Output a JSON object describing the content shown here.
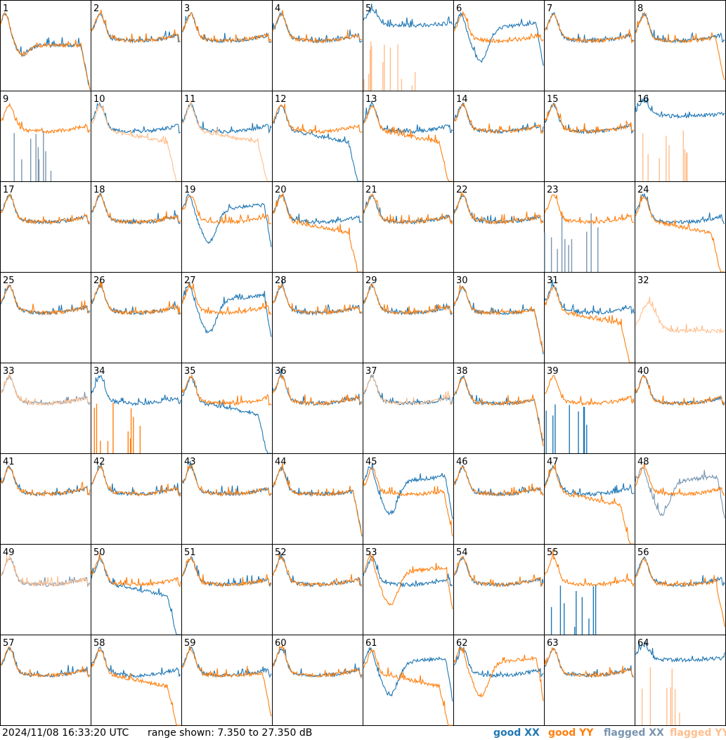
{
  "chart_data": {
    "type": "line",
    "ylim": [
      7.35,
      27.35
    ],
    "layout": "8x8 grid of small multiples",
    "panels": [
      {
        "label": "1",
        "xx": {
          "shape": "fall-dip",
          "flagged": false
        },
        "yy": {
          "shape": "fall-dip",
          "flagged": false
        }
      },
      {
        "label": "2",
        "xx": {
          "shape": "u",
          "flagged": false
        },
        "yy": {
          "shape": "u",
          "flagged": false
        }
      },
      {
        "label": "3",
        "xx": {
          "shape": "u",
          "flagged": false
        },
        "yy": {
          "shape": "u",
          "flagged": false
        }
      },
      {
        "label": "4",
        "xx": {
          "shape": "u",
          "flagged": false
        },
        "yy": {
          "shape": "u",
          "flagged": false
        }
      },
      {
        "label": "5",
        "xx": {
          "shape": "high-flat",
          "flagged": false
        },
        "yy": {
          "shape": "spikes-low",
          "flagged": true
        }
      },
      {
        "label": "6",
        "xx": {
          "shape": "deep-dip",
          "flagged": false
        },
        "yy": {
          "shape": "u",
          "flagged": false
        }
      },
      {
        "label": "7",
        "xx": {
          "shape": "u",
          "flagged": false
        },
        "yy": {
          "shape": "u",
          "flagged": false
        }
      },
      {
        "label": "8",
        "xx": {
          "shape": "u",
          "flagged": false
        },
        "yy": {
          "shape": "u-drop",
          "flagged": false
        }
      },
      {
        "label": "9",
        "xx": {
          "shape": "spikes-low",
          "flagged": true
        },
        "yy": {
          "shape": "u",
          "flagged": false
        }
      },
      {
        "label": "10",
        "xx": {
          "shape": "u",
          "flagged": false
        },
        "yy": {
          "shape": "droop",
          "flagged": true
        }
      },
      {
        "label": "11",
        "xx": {
          "shape": "u",
          "flagged": false
        },
        "yy": {
          "shape": "droop",
          "flagged": true
        }
      },
      {
        "label": "12",
        "xx": {
          "shape": "droop",
          "flagged": false
        },
        "yy": {
          "shape": "u",
          "flagged": false
        }
      },
      {
        "label": "13",
        "xx": {
          "shape": "u",
          "flagged": false
        },
        "yy": {
          "shape": "droop",
          "flagged": false
        }
      },
      {
        "label": "14",
        "xx": {
          "shape": "u",
          "flagged": false
        },
        "yy": {
          "shape": "u",
          "flagged": false
        }
      },
      {
        "label": "15",
        "xx": {
          "shape": "u",
          "flagged": false
        },
        "yy": {
          "shape": "u",
          "flagged": false
        }
      },
      {
        "label": "16",
        "xx": {
          "shape": "high-flat",
          "flagged": false
        },
        "yy": {
          "shape": "spikes-low",
          "flagged": true
        }
      },
      {
        "label": "17",
        "xx": {
          "shape": "u",
          "flagged": false
        },
        "yy": {
          "shape": "u",
          "flagged": false
        }
      },
      {
        "label": "18",
        "xx": {
          "shape": "u",
          "flagged": false
        },
        "yy": {
          "shape": "u",
          "flagged": false
        }
      },
      {
        "label": "19",
        "xx": {
          "shape": "deep-dip",
          "flagged": false
        },
        "yy": {
          "shape": "u",
          "flagged": false
        }
      },
      {
        "label": "20",
        "xx": {
          "shape": "u",
          "flagged": false
        },
        "yy": {
          "shape": "droop",
          "flagged": false
        }
      },
      {
        "label": "21",
        "xx": {
          "shape": "u",
          "flagged": false
        },
        "yy": {
          "shape": "u",
          "flagged": false
        }
      },
      {
        "label": "22",
        "xx": {
          "shape": "u",
          "flagged": false
        },
        "yy": {
          "shape": "u",
          "flagged": false
        }
      },
      {
        "label": "23",
        "xx": {
          "shape": "spikes-low",
          "flagged": true
        },
        "yy": {
          "shape": "u",
          "flagged": false
        }
      },
      {
        "label": "24",
        "xx": {
          "shape": "u",
          "flagged": false
        },
        "yy": {
          "shape": "droop",
          "flagged": false
        }
      },
      {
        "label": "25",
        "xx": {
          "shape": "u",
          "flagged": false
        },
        "yy": {
          "shape": "u",
          "flagged": false
        }
      },
      {
        "label": "26",
        "xx": {
          "shape": "u",
          "flagged": false
        },
        "yy": {
          "shape": "u",
          "flagged": false
        }
      },
      {
        "label": "27",
        "xx": {
          "shape": "deep-dip",
          "flagged": false
        },
        "yy": {
          "shape": "u",
          "flagged": false
        }
      },
      {
        "label": "28",
        "xx": {
          "shape": "u",
          "flagged": false
        },
        "yy": {
          "shape": "u",
          "flagged": false
        }
      },
      {
        "label": "29",
        "xx": {
          "shape": "u",
          "flagged": false
        },
        "yy": {
          "shape": "u",
          "flagged": false
        }
      },
      {
        "label": "30",
        "xx": {
          "shape": "u-drop",
          "flagged": false
        },
        "yy": {
          "shape": "u-drop",
          "flagged": false
        }
      },
      {
        "label": "31",
        "xx": {
          "shape": "u",
          "flagged": false
        },
        "yy": {
          "shape": "droop",
          "flagged": false
        }
      },
      {
        "label": "32",
        "xx": {
          "shape": "none",
          "flagged": true
        },
        "yy": {
          "shape": "noisy",
          "flagged": true
        }
      },
      {
        "label": "33",
        "xx": {
          "shape": "u",
          "flagged": true
        },
        "yy": {
          "shape": "u",
          "flagged": true
        }
      },
      {
        "label": "34",
        "xx": {
          "shape": "u",
          "flagged": false
        },
        "yy": {
          "shape": "spikes-low",
          "flagged": false
        }
      },
      {
        "label": "35",
        "xx": {
          "shape": "droop",
          "flagged": false
        },
        "yy": {
          "shape": "u",
          "flagged": false
        }
      },
      {
        "label": "36",
        "xx": {
          "shape": "u",
          "flagged": false
        },
        "yy": {
          "shape": "u",
          "flagged": false
        }
      },
      {
        "label": "37",
        "xx": {
          "shape": "u",
          "flagged": false
        },
        "yy": {
          "shape": "u",
          "flagged": true
        }
      },
      {
        "label": "38",
        "xx": {
          "shape": "u-drop",
          "flagged": false
        },
        "yy": {
          "shape": "u-drop",
          "flagged": false
        }
      },
      {
        "label": "39",
        "xx": {
          "shape": "spikes-low",
          "flagged": false
        },
        "yy": {
          "shape": "u",
          "flagged": false
        }
      },
      {
        "label": "40",
        "xx": {
          "shape": "u",
          "flagged": false
        },
        "yy": {
          "shape": "u",
          "flagged": false
        }
      },
      {
        "label": "41",
        "xx": {
          "shape": "u",
          "flagged": false
        },
        "yy": {
          "shape": "u",
          "flagged": false
        }
      },
      {
        "label": "42",
        "xx": {
          "shape": "u",
          "flagged": false
        },
        "yy": {
          "shape": "u",
          "flagged": false
        }
      },
      {
        "label": "43",
        "xx": {
          "shape": "u",
          "flagged": false
        },
        "yy": {
          "shape": "u",
          "flagged": false
        }
      },
      {
        "label": "44",
        "xx": {
          "shape": "u-drop",
          "flagged": false
        },
        "yy": {
          "shape": "u-drop",
          "flagged": false
        }
      },
      {
        "label": "45",
        "xx": {
          "shape": "deep-dip",
          "flagged": false
        },
        "yy": {
          "shape": "u-drop",
          "flagged": false
        }
      },
      {
        "label": "46",
        "xx": {
          "shape": "u",
          "flagged": false
        },
        "yy": {
          "shape": "u",
          "flagged": false
        }
      },
      {
        "label": "47",
        "xx": {
          "shape": "u",
          "flagged": false
        },
        "yy": {
          "shape": "droop",
          "flagged": false
        }
      },
      {
        "label": "48",
        "xx": {
          "shape": "deep-dip",
          "flagged": true
        },
        "yy": {
          "shape": "u",
          "flagged": false
        }
      },
      {
        "label": "49",
        "xx": {
          "shape": "u",
          "flagged": true
        },
        "yy": {
          "shape": "u",
          "flagged": true
        }
      },
      {
        "label": "50",
        "xx": {
          "shape": "droop",
          "flagged": false
        },
        "yy": {
          "shape": "u",
          "flagged": false
        }
      },
      {
        "label": "51",
        "xx": {
          "shape": "u",
          "flagged": false
        },
        "yy": {
          "shape": "u",
          "flagged": false
        }
      },
      {
        "label": "52",
        "xx": {
          "shape": "u",
          "flagged": false
        },
        "yy": {
          "shape": "u",
          "flagged": false
        }
      },
      {
        "label": "53",
        "xx": {
          "shape": "u",
          "flagged": false
        },
        "yy": {
          "shape": "deep-dip",
          "flagged": false
        }
      },
      {
        "label": "54",
        "xx": {
          "shape": "u",
          "flagged": false
        },
        "yy": {
          "shape": "u",
          "flagged": false
        }
      },
      {
        "label": "55",
        "xx": {
          "shape": "spikes-low",
          "flagged": false
        },
        "yy": {
          "shape": "u",
          "flagged": false
        }
      },
      {
        "label": "56",
        "xx": {
          "shape": "u",
          "flagged": false
        },
        "yy": {
          "shape": "u-drop",
          "flagged": false
        }
      },
      {
        "label": "57",
        "xx": {
          "shape": "u",
          "flagged": false
        },
        "yy": {
          "shape": "u",
          "flagged": false
        }
      },
      {
        "label": "58",
        "xx": {
          "shape": "u",
          "flagged": false
        },
        "yy": {
          "shape": "droop",
          "flagged": false
        }
      },
      {
        "label": "59",
        "xx": {
          "shape": "u",
          "flagged": false
        },
        "yy": {
          "shape": "u-drop",
          "flagged": false
        }
      },
      {
        "label": "60",
        "xx": {
          "shape": "u",
          "flagged": false
        },
        "yy": {
          "shape": "u",
          "flagged": false
        }
      },
      {
        "label": "61",
        "xx": {
          "shape": "deep-dip",
          "flagged": false
        },
        "yy": {
          "shape": "droop",
          "flagged": false
        }
      },
      {
        "label": "62",
        "xx": {
          "shape": "u",
          "flagged": false
        },
        "yy": {
          "shape": "deep-dip",
          "flagged": false
        }
      },
      {
        "label": "63",
        "xx": {
          "shape": "u",
          "flagged": false
        },
        "yy": {
          "shape": "u",
          "flagged": false
        }
      },
      {
        "label": "64",
        "xx": {
          "shape": "high-flat",
          "flagged": false
        },
        "yy": {
          "shape": "spikes-low",
          "flagged": true
        }
      }
    ]
  },
  "footer": {
    "timestamp": "2024/11/08 16:33:20 UTC",
    "range_text": "range shown: 7.350 to 27.350 dB"
  },
  "legend": {
    "good_xx": "good XX",
    "good_yy": "good YY",
    "flagged_xx": "flagged XX",
    "flagged_yy": "flagged YY"
  },
  "colors": {
    "good_xx": "#1f77b4",
    "good_yy": "#ff7f0e",
    "flagged_xx": "#7895b0",
    "flagged_yy": "#ffbe8c",
    "border": "#000000"
  }
}
